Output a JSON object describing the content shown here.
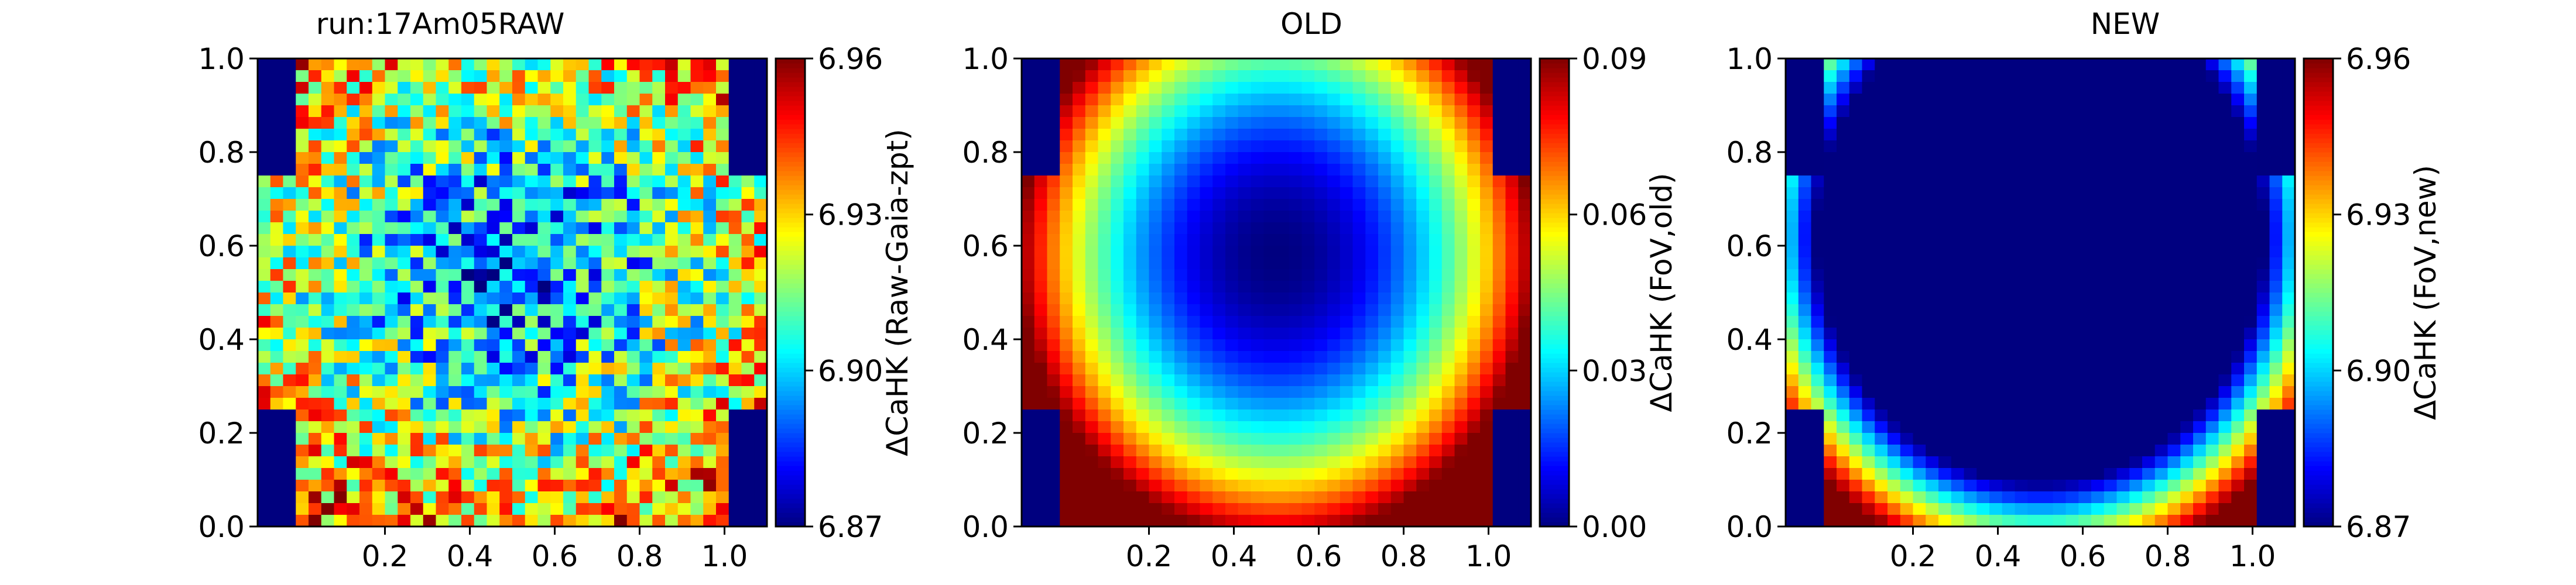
{
  "chart_data": [
    {
      "type": "heatmap",
      "title": "run:17Am05RAW",
      "colormap": "jet",
      "pattern": "noisy",
      "xticks": [
        "0.2",
        "0.4",
        "0.6",
        "0.8",
        "1.0"
      ],
      "yticks": [
        "0.0",
        "0.2",
        "0.4",
        "0.6",
        "0.8",
        "1.0"
      ],
      "colorbar": {
        "label": "ΔCaHK (Raw-Gaia-zpt)",
        "ticks": [
          "6.87",
          "6.90",
          "6.93",
          "6.96"
        ],
        "range": [
          6.87,
          6.96
        ]
      },
      "xlim": [
        -0.1,
        1.1
      ],
      "ylim": [
        0.0,
        1.0
      ],
      "masked_color": "#00007f"
    },
    {
      "type": "heatmap",
      "title": "OLD",
      "colormap": "jet",
      "pattern": "radial",
      "xticks": [
        "0.2",
        "0.4",
        "0.6",
        "0.8",
        "1.0"
      ],
      "yticks": [
        "0.0",
        "0.2",
        "0.4",
        "0.6",
        "0.8",
        "1.0"
      ],
      "colorbar": {
        "label": "ΔCaHK (FoV,old)",
        "ticks": [
          "0.00",
          "0.03",
          "0.06",
          "0.09"
        ],
        "range": [
          0.0,
          0.09
        ]
      },
      "xlim": [
        -0.1,
        1.1
      ],
      "ylim": [
        0.0,
        1.0
      ],
      "masked_color": "#00007f"
    },
    {
      "type": "heatmap",
      "title": "NEW",
      "colormap": "jet",
      "pattern": "bottom-arc",
      "xticks": [
        "0.2",
        "0.4",
        "0.6",
        "0.8",
        "1.0"
      ],
      "yticks": [
        "0.0",
        "0.2",
        "0.4",
        "0.6",
        "0.8",
        "1.0"
      ],
      "colorbar": {
        "label": "ΔCaHK (FoV,new)",
        "ticks": [
          "6.87",
          "6.90",
          "6.93",
          "6.96"
        ],
        "range": [
          6.87,
          6.96
        ]
      },
      "xlim": [
        -0.1,
        1.1
      ],
      "ylim": [
        0.0,
        1.0
      ],
      "masked_color": "#00007f"
    }
  ]
}
